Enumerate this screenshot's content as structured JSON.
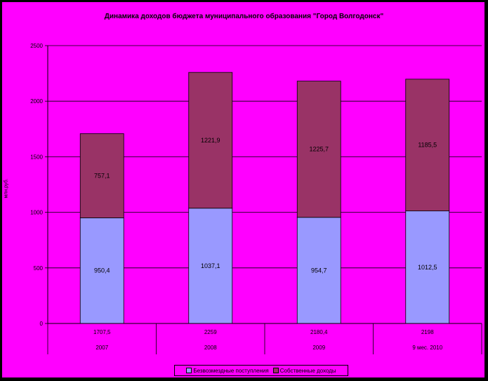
{
  "chart_data": {
    "type": "bar",
    "stacked": true,
    "title": "Динамика доходов бюджета муниципального образования \"Город Волгодонск\"",
    "ylabel": "млн.руб.",
    "ylim": [
      0,
      2500
    ],
    "yticks": [
      "0",
      "500",
      "1000",
      "1500",
      "2000",
      "2500"
    ],
    "categories": [
      "2007",
      "2008",
      "2009",
      "9 мес. 2010"
    ],
    "totals": [
      "1707,5",
      "2259",
      "2180,4",
      "2198"
    ],
    "series": [
      {
        "name": "Безвозмездные поступления",
        "values": [
          950.4,
          1037.1,
          954.7,
          1012.5
        ],
        "labels": [
          "950,4",
          "1037,1",
          "954,7",
          "1012,5"
        ],
        "color": "#9999ff"
      },
      {
        "name": "Собственные доходы",
        "values": [
          757.1,
          1221.9,
          1225.7,
          1185.5
        ],
        "labels": [
          "757,1",
          "1221,9",
          "1225,7",
          "1185,5"
        ],
        "color": "#993366"
      }
    ],
    "grid": true,
    "legend": "bottom"
  }
}
